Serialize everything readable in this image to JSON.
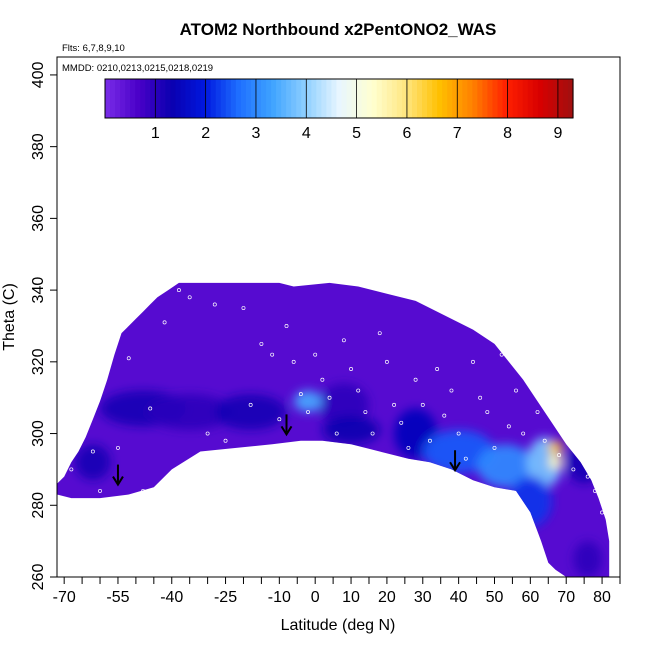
{
  "chart_data": {
    "type": "heatmap",
    "title": "ATOM2 Northbound x2PentONO2_WAS",
    "flights_label": "Flts: 6,7,8,9,10",
    "dates_label": "MMDD: 0210,0213,0215,0218,0219",
    "xlabel": "Latitude (deg N)",
    "ylabel": "Theta (C)",
    "xlim": [
      -72,
      85
    ],
    "ylim": [
      260,
      405
    ],
    "x_ticks": [
      -70,
      -55,
      -40,
      -25,
      -10,
      0,
      10,
      20,
      30,
      40,
      50,
      60,
      70,
      80
    ],
    "x_tick_labels": [
      "-70",
      "-55",
      "-40",
      "-25",
      "-10",
      "0",
      "10",
      "20",
      "30",
      "40",
      "50",
      "60",
      "70",
      "80"
    ],
    "x_minor_ticks": [
      -65,
      -60,
      -50,
      -45,
      -35,
      -30,
      -20,
      -15,
      -5,
      5,
      15,
      25,
      35,
      45,
      55,
      65,
      75,
      85
    ],
    "y_ticks": [
      260,
      280,
      300,
      320,
      340,
      360,
      380,
      400
    ],
    "y_tick_labels": [
      "260",
      "280",
      "300",
      "320",
      "340",
      "360",
      "380",
      "400"
    ],
    "colorbar": {
      "range": [
        0,
        9.3
      ],
      "ticks": [
        1,
        2,
        3,
        4,
        5,
        6,
        7,
        8,
        9
      ],
      "tick_labels": [
        "1",
        "2",
        "3",
        "4",
        "5",
        "6",
        "7",
        "8",
        "9"
      ],
      "colors": [
        "#7a2de8",
        "#4a00c8",
        "#0a00b0",
        "#0018e0",
        "#1e6fff",
        "#3fa3ff",
        "#8ecfff",
        "#e8f6ff",
        "#ffffd0",
        "#ffe680",
        "#ffc000",
        "#ff8000",
        "#ff2000",
        "#d80000",
        "#a01010"
      ]
    },
    "arrows": [
      {
        "lat": -55,
        "theta": 288
      },
      {
        "lat": -8,
        "theta": 302
      },
      {
        "lat": 39,
        "theta": 292
      }
    ],
    "upper_boundary": [
      [
        -72,
        286
      ],
      [
        -70,
        288
      ],
      [
        -68,
        292
      ],
      [
        -66,
        295
      ],
      [
        -64,
        299
      ],
      [
        -62,
        304
      ],
      [
        -60,
        309
      ],
      [
        -58,
        315
      ],
      [
        -56,
        322
      ],
      [
        -54,
        328
      ],
      [
        -52,
        330
      ],
      [
        -50,
        332
      ],
      [
        -48,
        334
      ],
      [
        -46,
        336
      ],
      [
        -44,
        338
      ],
      [
        -41,
        340
      ],
      [
        -38,
        342
      ],
      [
        -10,
        342
      ],
      [
        -6,
        341
      ],
      [
        4,
        342
      ],
      [
        12,
        341
      ],
      [
        20,
        339
      ],
      [
        28,
        337
      ],
      [
        36,
        333
      ],
      [
        44,
        329
      ],
      [
        50,
        325
      ],
      [
        54,
        320
      ],
      [
        58,
        315
      ],
      [
        62,
        309
      ],
      [
        66,
        303
      ],
      [
        70,
        297
      ],
      [
        74,
        292
      ],
      [
        77,
        287
      ],
      [
        79,
        282
      ],
      [
        81,
        276
      ],
      [
        82,
        270
      ],
      [
        82,
        260
      ]
    ],
    "lower_boundary": [
      [
        -72,
        283
      ],
      [
        -68,
        282
      ],
      [
        -60,
        282
      ],
      [
        -52,
        283
      ],
      [
        -45,
        285
      ],
      [
        -40,
        290
      ],
      [
        -32,
        295
      ],
      [
        -22,
        296
      ],
      [
        -12,
        297
      ],
      [
        -4,
        298
      ],
      [
        2,
        298
      ],
      [
        10,
        297
      ],
      [
        18,
        295
      ],
      [
        26,
        293
      ],
      [
        32,
        292
      ],
      [
        38,
        290
      ],
      [
        44,
        287
      ],
      [
        50,
        285
      ],
      [
        56,
        284
      ],
      [
        60,
        278
      ],
      [
        63,
        270
      ],
      [
        65,
        264
      ],
      [
        67,
        262
      ],
      [
        70,
        260
      ]
    ],
    "anomalies": [
      {
        "lat": -48,
        "theta": 307,
        "value": 1.2,
        "rx": 12,
        "ry": 5
      },
      {
        "lat": -35,
        "theta": 306,
        "value": 1.0,
        "rx": 12,
        "ry": 5
      },
      {
        "lat": -18,
        "theta": 306,
        "value": 1.2,
        "rx": 10,
        "ry": 5
      },
      {
        "lat": 8,
        "theta": 308,
        "value": 1.0,
        "rx": 7,
        "ry": 6
      },
      {
        "lat": -62,
        "theta": 292,
        "value": 1.2,
        "rx": 5,
        "ry": 5
      },
      {
        "lat": -2,
        "theta": 309,
        "value": 3.4,
        "rx": 4,
        "ry": 3
      },
      {
        "lat": 10,
        "theta": 301,
        "value": 1.3,
        "rx": 8,
        "ry": 4
      },
      {
        "lat": 28,
        "theta": 300,
        "value": 1.5,
        "rx": 6,
        "ry": 7
      },
      {
        "lat": 40,
        "theta": 295,
        "value": 2.5,
        "rx": 10,
        "ry": 6
      },
      {
        "lat": 53,
        "theta": 291,
        "value": 3.0,
        "rx": 8,
        "ry": 6
      },
      {
        "lat": 64,
        "theta": 292,
        "value": 3.8,
        "rx": 5,
        "ry": 7
      },
      {
        "lat": 60,
        "theta": 281,
        "value": 2.2,
        "rx": 6,
        "ry": 7
      },
      {
        "lat": 67,
        "theta": 296,
        "value": 6.5,
        "rx": 2,
        "ry": 2
      },
      {
        "lat": 67,
        "theta": 292,
        "value": 5.5,
        "rx": 2,
        "ry": 2
      },
      {
        "lat": 75,
        "theta": 292,
        "value": 1.2,
        "rx": 5,
        "ry": 6
      },
      {
        "lat": 76,
        "theta": 265,
        "value": 1.0,
        "rx": 4,
        "ry": 5
      }
    ],
    "sample_points": [
      [
        -68,
        290
      ],
      [
        -62,
        295
      ],
      [
        -60,
        284
      ],
      [
        -55,
        296
      ],
      [
        -52,
        321
      ],
      [
        -48,
        284
      ],
      [
        -46,
        307
      ],
      [
        -42,
        331
      ],
      [
        -38,
        340
      ],
      [
        -35,
        338
      ],
      [
        -30,
        300
      ],
      [
        -28,
        336
      ],
      [
        -25,
        298
      ],
      [
        -20,
        335
      ],
      [
        -18,
        308
      ],
      [
        -15,
        325
      ],
      [
        -12,
        322
      ],
      [
        -10,
        304
      ],
      [
        -8,
        330
      ],
      [
        -6,
        320
      ],
      [
        -4,
        311
      ],
      [
        -2,
        306
      ],
      [
        0,
        322
      ],
      [
        2,
        315
      ],
      [
        4,
        310
      ],
      [
        6,
        300
      ],
      [
        8,
        326
      ],
      [
        10,
        318
      ],
      [
        12,
        312
      ],
      [
        14,
        306
      ],
      [
        16,
        300
      ],
      [
        18,
        328
      ],
      [
        20,
        320
      ],
      [
        22,
        308
      ],
      [
        24,
        303
      ],
      [
        26,
        296
      ],
      [
        28,
        315
      ],
      [
        30,
        308
      ],
      [
        32,
        298
      ],
      [
        34,
        318
      ],
      [
        36,
        305
      ],
      [
        38,
        312
      ],
      [
        40,
        300
      ],
      [
        42,
        293
      ],
      [
        44,
        320
      ],
      [
        46,
        310
      ],
      [
        48,
        306
      ],
      [
        50,
        296
      ],
      [
        52,
        322
      ],
      [
        54,
        302
      ],
      [
        56,
        312
      ],
      [
        58,
        300
      ],
      [
        60,
        318
      ],
      [
        62,
        306
      ],
      [
        64,
        298
      ],
      [
        66,
        310
      ],
      [
        68,
        294
      ],
      [
        70,
        302
      ],
      [
        72,
        290
      ],
      [
        74,
        296
      ],
      [
        76,
        288
      ],
      [
        78,
        284
      ],
      [
        80,
        278
      ]
    ]
  }
}
